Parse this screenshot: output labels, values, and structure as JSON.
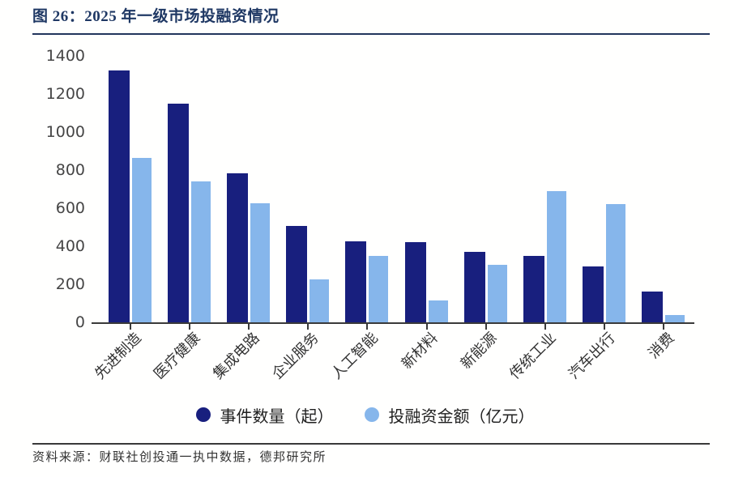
{
  "figure": {
    "title": "图 26：2025 年一级市场投融资情况",
    "source": "资料来源：财联社创投通一执中数据，德邦研究所"
  },
  "chart_data": {
    "type": "bar",
    "title": "2025 年一级市场投融资情况",
    "categories": [
      "先进制造",
      "医疗健康",
      "集成电路",
      "企业服务",
      "人工智能",
      "新材料",
      "新能源",
      "传统工业",
      "汽车出行",
      "消费"
    ],
    "series": [
      {
        "name": "事件数量（起）",
        "color": "#181F7E",
        "values": [
          1325,
          1150,
          785,
          505,
          425,
          420,
          370,
          350,
          295,
          160
        ]
      },
      {
        "name": "投融资金额（亿元）",
        "color": "#86B6EB",
        "values": [
          865,
          740,
          625,
          225,
          350,
          115,
          300,
          690,
          620,
          40
        ]
      }
    ],
    "xlabel": "",
    "ylabel": "",
    "ylim": [
      0,
      1400
    ],
    "y_ticks": [
      0,
      200,
      400,
      600,
      800,
      1000,
      1200,
      1400
    ],
    "grid": false,
    "legend_position": "bottom",
    "colors": {
      "title_navy": "#1F3864",
      "axis_line": "#3a3a3a",
      "tick_label": "#454545",
      "category_label": "#333333"
    }
  }
}
